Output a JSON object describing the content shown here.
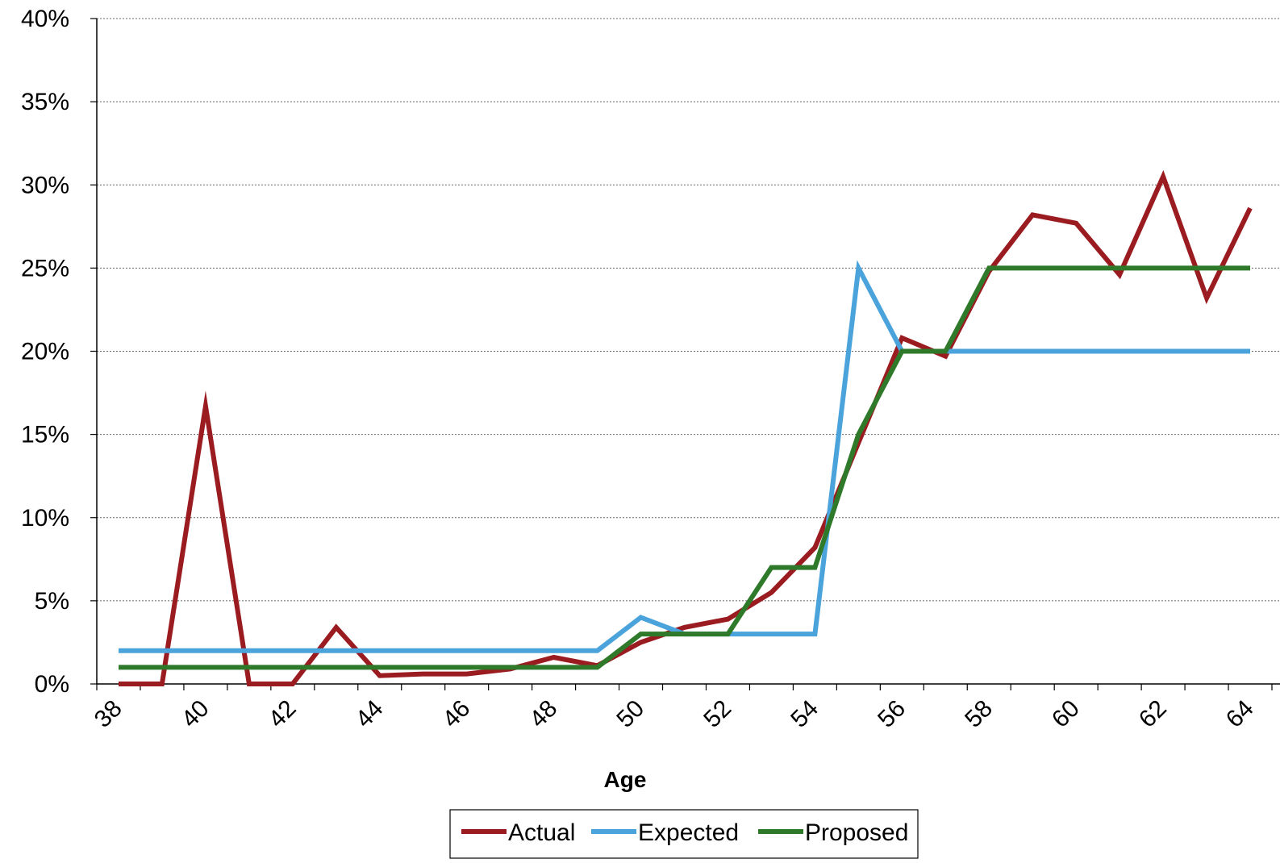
{
  "chart_data": {
    "type": "line",
    "title": "",
    "xlabel": "Age",
    "ylabel": "",
    "x": [
      38,
      39,
      40,
      41,
      42,
      43,
      44,
      45,
      46,
      47,
      48,
      49,
      50,
      51,
      52,
      53,
      54,
      55,
      56,
      57,
      58,
      59,
      60,
      61,
      62,
      63,
      64
    ],
    "x_tick_labels": [
      "38",
      "40",
      "42",
      "44",
      "46",
      "48",
      "50",
      "52",
      "54",
      "56",
      "58",
      "60",
      "62",
      "64"
    ],
    "y_tick_labels": [
      "0%",
      "5%",
      "10%",
      "15%",
      "20%",
      "25%",
      "30%",
      "35%",
      "40%"
    ],
    "ylim": [
      0,
      40
    ],
    "y_unit": "%",
    "grid": "horizontal dotted",
    "legend_position": "bottom",
    "series": [
      {
        "name": "Actual",
        "color": "#9b1c20",
        "values": [
          0,
          0,
          16.7,
          0,
          0,
          3.4,
          0.5,
          0.6,
          0.6,
          0.9,
          1.6,
          1.1,
          2.5,
          3.4,
          3.9,
          5.5,
          8.2,
          14.5,
          20.8,
          19.7,
          24.8,
          28.2,
          27.7,
          24.6,
          30.5,
          23.2,
          28.6
        ]
      },
      {
        "name": "Expected",
        "color": "#4aa3db",
        "values": [
          2,
          2,
          2,
          2,
          2,
          2,
          2,
          2,
          2,
          2,
          2,
          2,
          4,
          3,
          3,
          3,
          3,
          25,
          20,
          20,
          20,
          20,
          20,
          20,
          20,
          20,
          20
        ]
      },
      {
        "name": "Proposed",
        "color": "#2f7a2a",
        "values": [
          1,
          1,
          1,
          1,
          1,
          1,
          1,
          1,
          1,
          1,
          1,
          1,
          3,
          3,
          3,
          7,
          7,
          15,
          20,
          20,
          25,
          25,
          25,
          25,
          25,
          25,
          25
        ]
      }
    ]
  }
}
